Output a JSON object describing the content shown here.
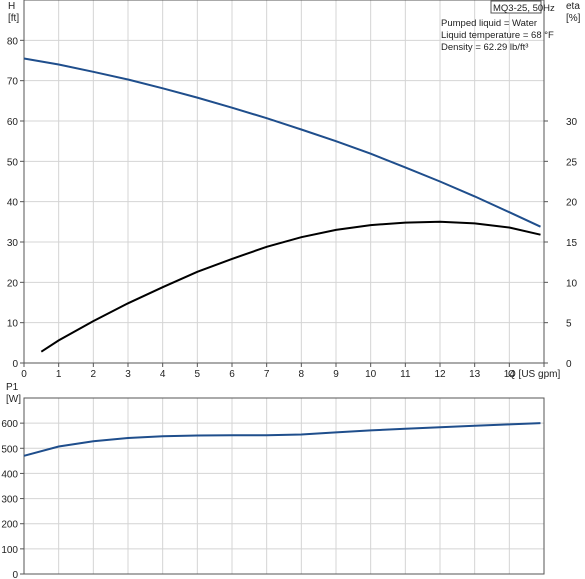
{
  "chart_data": [
    {
      "type": "line",
      "model_label": "MQ3-25, 50Hz",
      "info_lines": [
        "Pumped liquid = Water",
        "Liquid temperature = 68 °F",
        "Density = 62.29 lb/ft³"
      ],
      "xlabel": "Q [US gpm]",
      "x_ticks": [
        "0",
        "1",
        "2",
        "3",
        "4",
        "5",
        "6",
        "7",
        "8",
        "9",
        "10",
        "11",
        "12",
        "13",
        "14"
      ],
      "xlim": [
        0,
        15
      ],
      "ylabel_left": [
        "H",
        "[ft]"
      ],
      "ylim_left": [
        0,
        90
      ],
      "y_ticks_left": [
        "0",
        "10",
        "20",
        "30",
        "40",
        "50",
        "60",
        "70",
        "80"
      ],
      "ylabel_right": [
        "eta",
        "[%]"
      ],
      "ylim_right": [
        0,
        45
      ],
      "y_ticks_right": [
        "0",
        "5",
        "10",
        "15",
        "20",
        "25",
        "30"
      ],
      "grid": true,
      "series": [
        {
          "axis": "left",
          "color": "#1f4e8c",
          "x": [
            0,
            1,
            2,
            3,
            4,
            5,
            6,
            7,
            8,
            9,
            10,
            11,
            12,
            13,
            14,
            14.9
          ],
          "values": [
            75.5,
            74,
            72.2,
            70.3,
            68.1,
            65.8,
            63.3,
            60.7,
            57.9,
            55,
            51.9,
            48.5,
            45,
            41.3,
            37.4,
            33.8
          ]
        },
        {
          "axis": "right",
          "color": "#000000",
          "x": [
            0.5,
            1,
            2,
            3,
            4,
            5,
            6,
            7,
            8,
            9,
            10,
            11,
            12,
            13,
            14,
            14.9
          ],
          "values": [
            1.4,
            2.8,
            5.2,
            7.4,
            9.4,
            11.3,
            12.9,
            14.4,
            15.6,
            16.5,
            17.1,
            17.4,
            17.5,
            17.3,
            16.8,
            15.9
          ]
        }
      ]
    },
    {
      "type": "line",
      "ylabel": [
        "P1",
        "[W]"
      ],
      "ylim": [
        0,
        700
      ],
      "y_ticks": [
        "0",
        "100",
        "200",
        "300",
        "400",
        "500",
        "600"
      ],
      "xlim": [
        0,
        15
      ],
      "grid": true,
      "series": [
        {
          "color": "#1f4e8c",
          "x": [
            0,
            1,
            2,
            3,
            4,
            5,
            6,
            7,
            8,
            9,
            10,
            11,
            12,
            13,
            14,
            14.9
          ],
          "values": [
            470,
            507,
            528,
            541,
            548,
            551,
            552,
            552,
            555,
            563,
            571,
            578,
            584,
            590,
            595,
            600
          ]
        }
      ]
    }
  ]
}
